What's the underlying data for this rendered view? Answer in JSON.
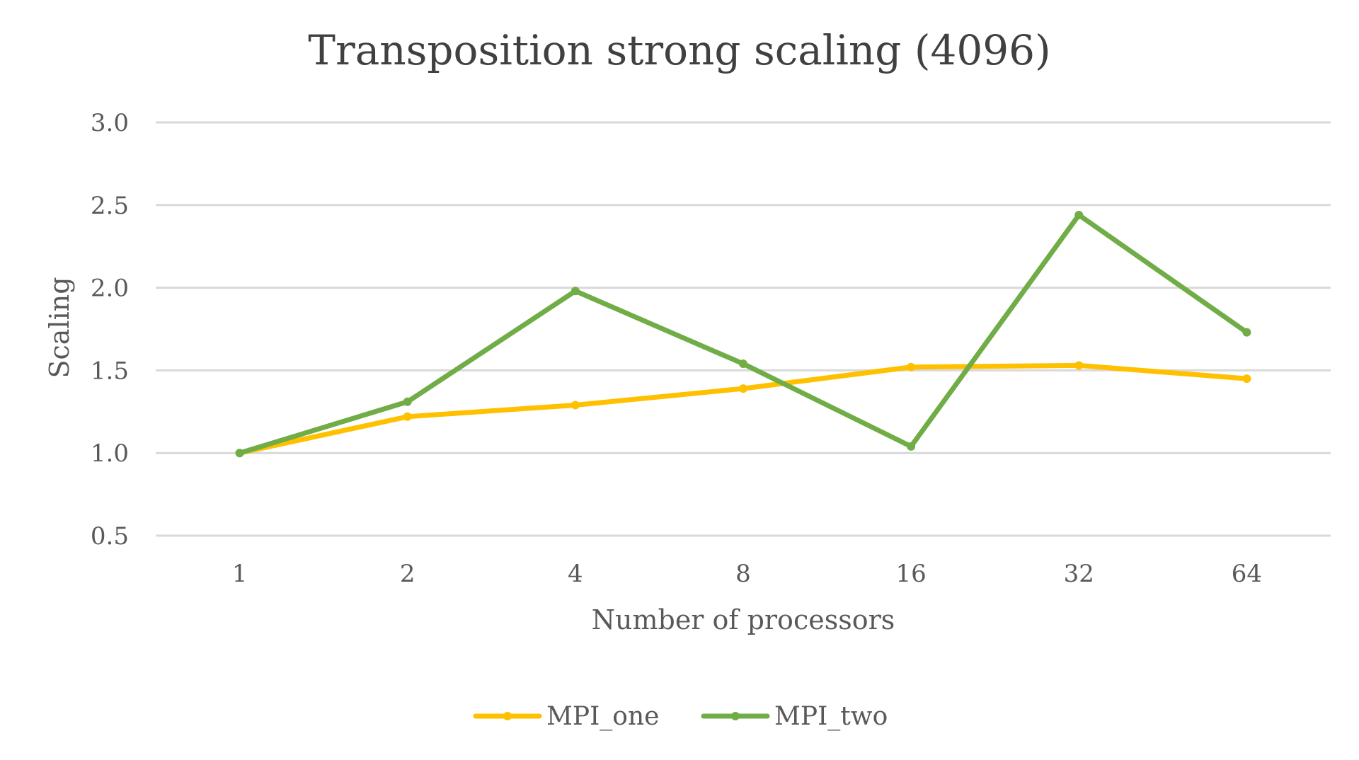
{
  "chart_data": {
    "type": "line",
    "title": "Transposition strong scaling (4096)",
    "xlabel": "Number of processors",
    "ylabel": "Scaling",
    "categories": [
      "1",
      "2",
      "4",
      "8",
      "16",
      "32",
      "64"
    ],
    "ylim": [
      0.5,
      3.0
    ],
    "yticks": [
      "0.5",
      "1.0",
      "1.5",
      "2.0",
      "2.5",
      "3.0"
    ],
    "grid": true,
    "legend_position": "bottom",
    "series": [
      {
        "name": "MPI_one",
        "color": "#FFC000",
        "values": [
          1.0,
          1.22,
          1.29,
          1.39,
          1.52,
          1.53,
          1.45
        ]
      },
      {
        "name": "MPI_two",
        "color": "#70AD47",
        "values": [
          1.0,
          1.31,
          1.98,
          1.54,
          1.04,
          2.44,
          1.73
        ]
      }
    ]
  }
}
